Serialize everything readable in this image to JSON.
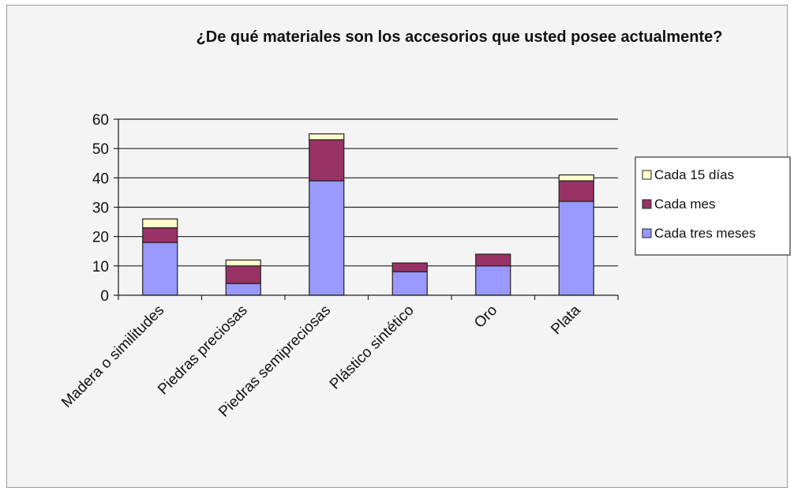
{
  "chart_data": {
    "type": "bar",
    "stacked": true,
    "title": "¿De qué materiales son los accesorios que usted posee actualmente?",
    "xlabel": "",
    "ylabel": "",
    "ylim": [
      0,
      60
    ],
    "yticks": [
      0,
      10,
      20,
      30,
      40,
      50,
      60
    ],
    "categories": [
      "Madera o similitudes",
      "Piedras preciosas",
      "Piedras semipreciosas",
      "Plástico sintético",
      "Oro",
      "Plata"
    ],
    "series": [
      {
        "name": "Cada tres meses",
        "color": "#9999ff",
        "values": [
          18,
          4,
          39,
          8,
          10,
          32
        ]
      },
      {
        "name": "Cada mes",
        "color": "#993366",
        "values": [
          5,
          6,
          14,
          3,
          4,
          7
        ]
      },
      {
        "name": "Cada 15 días",
        "color": "#ffffcc",
        "values": [
          3,
          2,
          2,
          0,
          0,
          2
        ]
      }
    ],
    "legend_order": [
      "Cada 15 días",
      "Cada mes",
      "Cada tres meses"
    ],
    "legend_position": "right",
    "grid": true
  }
}
